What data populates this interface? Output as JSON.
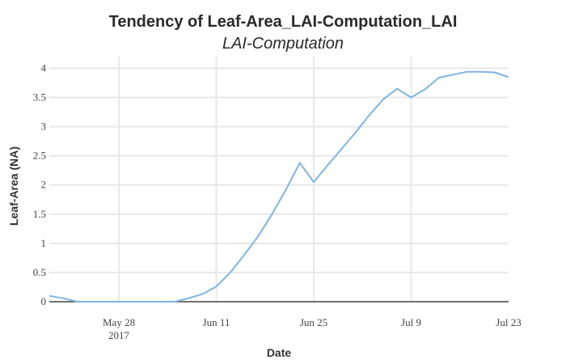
{
  "chart_data": {
    "type": "line",
    "title": "Tendency of Leaf-Area_LAI-Computation_LAI",
    "subtitle": "LAI-Computation",
    "xlabel": "Date",
    "ylabel": "Leaf-Area (NA)",
    "xlim": [
      "2017-05-18",
      "2017-07-23"
    ],
    "ylim": [
      0,
      4.2
    ],
    "grid": true,
    "legend": "none",
    "x_ticks": [
      {
        "date": "2017-05-28",
        "label": "May 28",
        "sublabel": "2017"
      },
      {
        "date": "2017-06-11",
        "label": "Jun 11",
        "sublabel": ""
      },
      {
        "date": "2017-06-25",
        "label": "Jun 25",
        "sublabel": ""
      },
      {
        "date": "2017-07-09",
        "label": "Jul 9",
        "sublabel": ""
      },
      {
        "date": "2017-07-23",
        "label": "Jul 23",
        "sublabel": ""
      }
    ],
    "y_ticks": [
      {
        "value": 0,
        "label": "0"
      },
      {
        "value": 0.5,
        "label": "0.5"
      },
      {
        "value": 1,
        "label": "1"
      },
      {
        "value": 1.5,
        "label": "1.5"
      },
      {
        "value": 2,
        "label": "2"
      },
      {
        "value": 2.5,
        "label": "2.5"
      },
      {
        "value": 3,
        "label": "3"
      },
      {
        "value": 3.5,
        "label": "3.5"
      },
      {
        "value": 4,
        "label": "4"
      }
    ],
    "series": [
      {
        "color": "#7eb4e4",
        "x": [
          "2017-05-18",
          "2017-05-20",
          "2017-05-22",
          "2017-05-24",
          "2017-05-26",
          "2017-05-28",
          "2017-05-30",
          "2017-06-01",
          "2017-06-03",
          "2017-06-05",
          "2017-06-07",
          "2017-06-09",
          "2017-06-11",
          "2017-06-13",
          "2017-06-15",
          "2017-06-17",
          "2017-06-19",
          "2017-06-21",
          "2017-06-23",
          "2017-06-25",
          "2017-06-27",
          "2017-06-29",
          "2017-07-01",
          "2017-07-03",
          "2017-07-05",
          "2017-07-07",
          "2017-07-09",
          "2017-07-11",
          "2017-07-13",
          "2017-07-15",
          "2017-07-17",
          "2017-07-19",
          "2017-07-21",
          "2017-07-23"
        ],
        "y": [
          0.1,
          0.06,
          0.0,
          0.0,
          0.0,
          0.0,
          0.0,
          0.0,
          0.0,
          0.0,
          0.06,
          0.13,
          0.26,
          0.5,
          0.8,
          1.12,
          1.5,
          1.92,
          2.38,
          2.05,
          2.34,
          2.62,
          2.9,
          3.2,
          3.47,
          3.65,
          3.5,
          3.64,
          3.84,
          3.89,
          3.94,
          3.94,
          3.93,
          3.85
        ]
      }
    ]
  }
}
